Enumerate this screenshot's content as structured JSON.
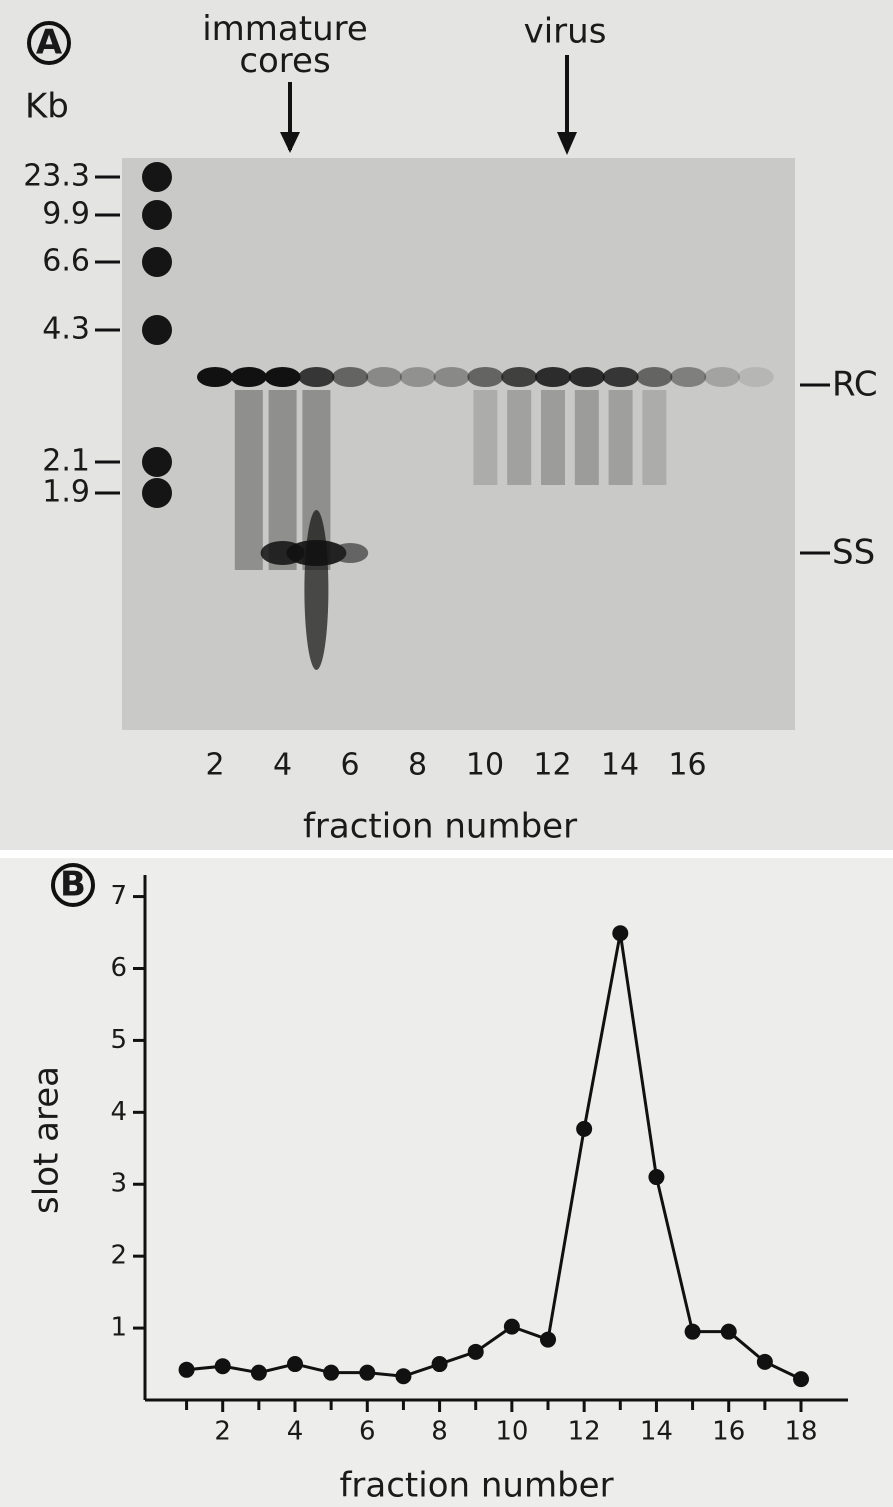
{
  "gel_panel": {
    "panel_label": "A",
    "arrow_labels": [
      "immature\ncores",
      "virus"
    ],
    "size_unit": "Kb",
    "size_markers": [
      23.3,
      9.9,
      6.6,
      4.3,
      2.1,
      1.9
    ],
    "band_labels": [
      "RC",
      "SS"
    ],
    "lane_labels": [
      2,
      4,
      6,
      8,
      10,
      12,
      14,
      16
    ],
    "x_label": "fraction number"
  },
  "chart_data": {
    "type": "line",
    "panel_label": "B",
    "x_label": "fraction number",
    "y_label": "slot area",
    "series": [
      {
        "color": "#111111",
        "x": [
          1,
          2,
          3,
          4,
          5,
          6,
          7,
          8,
          9,
          10,
          11,
          12,
          13,
          14,
          15,
          16,
          17,
          18
        ],
        "values": [
          0.42,
          0.47,
          0.38,
          0.5,
          0.38,
          0.38,
          0.33,
          0.5,
          0.67,
          1.02,
          0.84,
          3.77,
          6.49,
          3.1,
          0.95,
          0.95,
          0.53,
          0.29
        ]
      }
    ],
    "xlim": [
      -0.15,
      19.3
    ],
    "ylim": [
      0,
      7.3
    ],
    "xticks": [
      2,
      4,
      6,
      8,
      10,
      12,
      14,
      16,
      18
    ],
    "x_minor_ticks": [
      1,
      3,
      5,
      7,
      9,
      11,
      13,
      15,
      17
    ],
    "yticks": [
      1,
      2,
      3,
      4,
      5,
      6,
      7
    ]
  }
}
